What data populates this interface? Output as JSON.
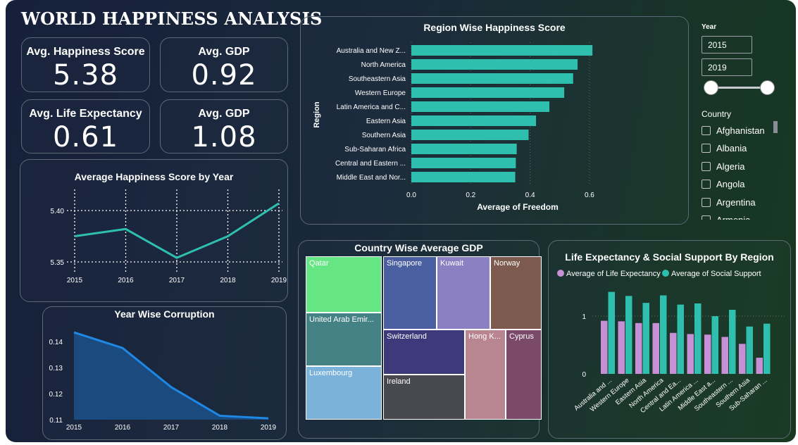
{
  "header": {
    "title": "WORLD HAPPINESS ANALYSIS"
  },
  "kpis": [
    {
      "label": "Avg. Happiness Score",
      "value": "5.38"
    },
    {
      "label": "Avg. GDP",
      "value": "0.92"
    },
    {
      "label": "Avg. Life Expectancy",
      "value": "0.61"
    },
    {
      "label": "Avg. GDP",
      "value": "1.08"
    }
  ],
  "slicers": {
    "year_label": "Year",
    "year_from": "2015",
    "year_to": "2019",
    "country_label": "Country",
    "countries": [
      "Afghanistan",
      "Albania",
      "Algeria",
      "Angola",
      "Argentina",
      "Armenia"
    ]
  },
  "colors": {
    "teal": "#2ebfae",
    "blue": "#1e88e5",
    "lavender": "#c78fd6",
    "dark_bg": "#17233a"
  },
  "chart_data": [
    {
      "id": "region_freedom",
      "type": "bar",
      "orientation": "horizontal",
      "title": "Region Wise Happiness Score",
      "xlabel": "Average of Freedom",
      "ylabel": "Region",
      "categories": [
        "Australia and New Z...",
        "North America",
        "Southeastern Asia",
        "Western Europe",
        "Latin America and C...",
        "Eastern Asia",
        "Southern Asia",
        "Sub-Saharan Africa",
        "Central and Eastern ...",
        "Middle East and Nor..."
      ],
      "values": [
        0.61,
        0.56,
        0.545,
        0.515,
        0.465,
        0.42,
        0.395,
        0.355,
        0.352,
        0.35
      ],
      "xlim": [
        0,
        0.65
      ],
      "xticks": [
        "0.0",
        "0.2",
        "0.4",
        "0.6"
      ],
      "grid": true
    },
    {
      "id": "happiness_by_year",
      "type": "line",
      "title": "Average Happiness Score by Year",
      "x": [
        "2015",
        "2016",
        "2017",
        "2018",
        "2019"
      ],
      "values": [
        5.375,
        5.382,
        5.354,
        5.375,
        5.407
      ],
      "ylim": [
        5.34,
        5.42
      ],
      "yticks": [
        "5.40",
        "5.35"
      ],
      "grid": true
    },
    {
      "id": "corruption_by_year",
      "type": "area",
      "title": "Year Wise Corruption",
      "x": [
        "2015",
        "2016",
        "2017",
        "2018",
        "2019"
      ],
      "values": [
        0.1435,
        0.1375,
        0.1225,
        0.1115,
        0.1105
      ],
      "ylim": [
        0.11,
        0.145
      ],
      "yticks": [
        "0.14",
        "0.13",
        "0.12",
        "0.11"
      ]
    },
    {
      "id": "gdp_treemap",
      "type": "treemap",
      "title": "Country Wise Average GDP",
      "items": [
        {
          "name": "Qatar",
          "color": "#66e585"
        },
        {
          "name": "United Arab Emir...",
          "color": "#458286"
        },
        {
          "name": "Luxembourg",
          "color": "#7bb2d9"
        },
        {
          "name": "Singapore",
          "color": "#4a5fa0"
        },
        {
          "name": "Kuwait",
          "color": "#8a80c2"
        },
        {
          "name": "Norway",
          "color": "#7c5a4e"
        },
        {
          "name": "Switzerland",
          "color": "#3c3a7a"
        },
        {
          "name": "Ireland",
          "color": "#48484f"
        },
        {
          "name": "Hong K...",
          "color": "#b88591"
        },
        {
          "name": "Cyprus",
          "color": "#7a4a68"
        }
      ]
    },
    {
      "id": "life_social_region",
      "type": "bar",
      "title": "Life Expectancy & Social Support By Region",
      "categories": [
        "Australia and ...",
        "Western Europe",
        "Eastern Asia",
        "North America",
        "Central and Ea...",
        "Latin America ...",
        "Middle East a...",
        "Southeastern ...",
        "Southern Asia",
        "Sub-Saharan ..."
      ],
      "series": [
        {
          "name": "Average of Life Expectancy",
          "color": "#c78fd6",
          "values": [
            0.92,
            0.91,
            0.88,
            0.88,
            0.71,
            0.69,
            0.68,
            0.64,
            0.52,
            0.28
          ]
        },
        {
          "name": "Average of Social Support",
          "color": "#2ebfae",
          "values": [
            1.42,
            1.35,
            1.23,
            1.36,
            1.2,
            1.22,
            1.0,
            1.11,
            0.82,
            0.87
          ]
        }
      ],
      "ylim": [
        0,
        1.5
      ],
      "yticks": [
        "1",
        "0"
      ],
      "legend": "top-left"
    }
  ]
}
